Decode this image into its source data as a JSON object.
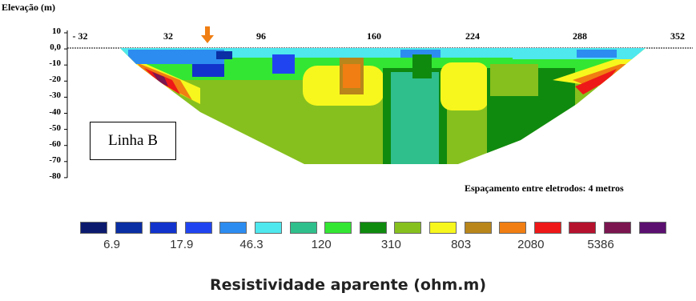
{
  "chart_data": {
    "type": "heatmap",
    "title": "",
    "ylabel": "Elevação (m)",
    "y_ticks": [
      "10",
      "0,0",
      "-10",
      "-20",
      "-30",
      "-40",
      "-50",
      "-60",
      "-70",
      "-80"
    ],
    "x_ticks": [
      "- 32",
      "32",
      "96",
      "160",
      "224",
      "288",
      "352"
    ],
    "annotation": "Linha B",
    "note": "Espaçamento entre eletrodos: 4 metros",
    "colorbar": {
      "label": "Resistividade aparente (ohm.m)",
      "colors": [
        "#0c1a6e",
        "#0a2ea3",
        "#1233cc",
        "#2045f0",
        "#2d8cf0",
        "#4ee8ee",
        "#2fbf8c",
        "#33e633",
        "#0f8a0f",
        "#86c01e",
        "#f7f71d",
        "#b8861b",
        "#f07e12",
        "#ee1818",
        "#b5122e",
        "#7b1650",
        "#5b1070"
      ],
      "tick_labels": [
        "6.9",
        "17.9",
        "46.3",
        "120",
        "310",
        "803",
        "2080",
        "5386"
      ]
    }
  }
}
